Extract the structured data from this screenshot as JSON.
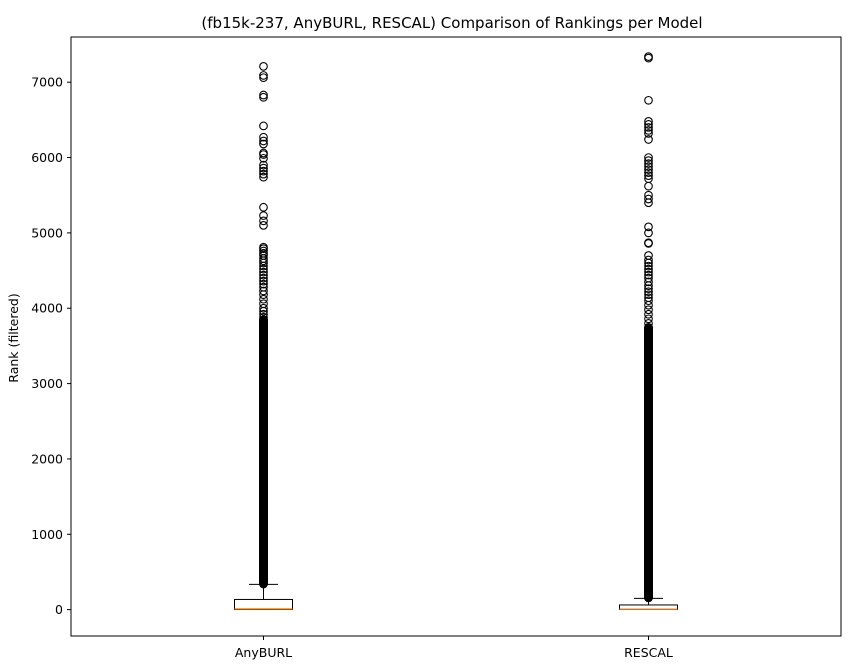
{
  "chart_data": {
    "type": "box",
    "title": "(fb15k-237, AnyBURL, RESCAL) Comparison of Rankings per Model",
    "xlabel": "",
    "ylabel": "Rank (filtered)",
    "ylim": [
      -350,
      7600
    ],
    "yticks": [
      0,
      1000,
      2000,
      3000,
      4000,
      5000,
      6000,
      7000
    ],
    "grid": false,
    "colors": {
      "box": "#000000",
      "median": "#ff7f0e",
      "flier": "#000000"
    },
    "series": [
      {
        "name": "AnyBURL",
        "whisker_low": 1,
        "q1": 2,
        "median": 9,
        "q3": 135,
        "whisker_high": 335,
        "dense_outlier_range": [
          340,
          3850
        ],
        "outliers": [
          3880,
          3920,
          3960,
          4000,
          4060,
          4120,
          4180,
          4230,
          4280,
          4320,
          4360,
          4400,
          4440,
          4480,
          4520,
          4560,
          4600,
          4630,
          4660,
          4700,
          4730,
          4760,
          4790,
          4810,
          5100,
          5160,
          5230,
          5340,
          5740,
          5780,
          5820,
          5860,
          5900,
          5990,
          6040,
          6060,
          6180,
          6220,
          6270,
          6420,
          6800,
          6830,
          7060,
          7090,
          7210
        ]
      },
      {
        "name": "RESCAL",
        "whisker_low": 1,
        "q1": 2,
        "median": 6,
        "q3": 62,
        "whisker_high": 150,
        "dense_outlier_range": [
          155,
          3750
        ],
        "outliers": [
          3800,
          3860,
          3920,
          3980,
          4040,
          4100,
          4140,
          4180,
          4220,
          4260,
          4300,
          4350,
          4400,
          4440,
          4480,
          4520,
          4560,
          4600,
          4640,
          4700,
          4860,
          4870,
          5000,
          5080,
          5400,
          5450,
          5500,
          5620,
          5720,
          5760,
          5800,
          5840,
          5880,
          5920,
          5960,
          6000,
          6240,
          6320,
          6360,
          6400,
          6440,
          6480,
          6760,
          7320,
          7340
        ]
      }
    ]
  }
}
